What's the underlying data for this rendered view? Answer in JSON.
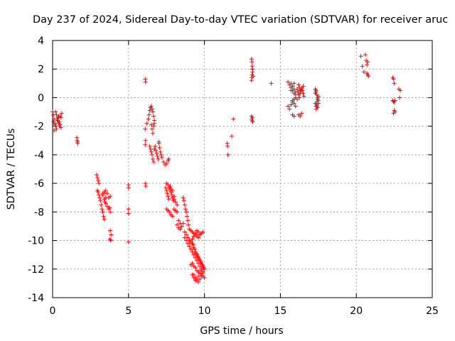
{
  "chart_data": {
    "type": "scatter",
    "title": "Day 237 of 2024, Sidereal Day-to-day VTEC variation (SDTVAR) for receiver aruc",
    "xlabel": "GPS time / hours",
    "ylabel": "SDTVAR / TECUs",
    "xlim": [
      0,
      25
    ],
    "ylim": [
      -14,
      4
    ],
    "xticks": [
      0,
      5,
      10,
      15,
      20,
      25
    ],
    "yticks": [
      -14,
      -12,
      -10,
      -8,
      -6,
      -4,
      -2,
      0,
      2,
      4
    ],
    "grid": true,
    "marker": "+",
    "color": "#ff0000",
    "series": [
      {
        "name": "SDTVAR",
        "x": [
          0.0,
          0.05,
          0.1,
          0.15,
          0.2,
          0.25,
          0.3,
          0.35,
          0.4,
          0.45,
          0.5,
          0.55,
          0.6,
          0.1,
          0.2,
          0.3,
          0.4,
          0.5,
          0.05,
          0.15,
          0.25,
          0.35,
          0.45,
          0.55,
          1.6,
          1.62,
          1.64,
          1.66,
          2.9,
          2.95,
          3.0,
          3.05,
          2.95,
          3.0,
          3.05,
          3.1,
          3.15,
          3.2,
          3.25,
          3.3,
          3.35,
          3.4,
          3.45,
          3.5,
          3.3,
          3.4,
          3.5,
          3.6,
          3.7,
          3.8,
          3.3,
          3.4,
          3.5,
          3.6,
          3.7,
          3.8,
          3.75,
          3.8,
          3.85,
          3.78,
          3.82,
          5.0,
          5.0,
          5.0,
          5.0,
          5.0,
          6.1,
          6.12,
          6.1,
          6.12,
          6.1,
          6.12,
          6.14,
          6.2,
          6.3,
          6.35,
          6.4,
          6.45,
          6.5,
          6.55,
          6.6,
          6.65,
          6.7,
          6.5,
          6.55,
          6.6,
          6.65,
          6.7,
          6.4,
          6.45,
          6.5,
          6.55,
          6.6,
          6.65,
          6.7,
          6.75,
          6.8,
          6.85,
          6.9,
          6.95,
          7.0,
          7.0,
          7.05,
          7.1,
          7.15,
          7.2,
          7.3,
          7.4,
          7.5,
          7.6,
          7.65,
          7.45,
          7.5,
          7.55,
          7.6,
          7.65,
          7.7,
          7.75,
          7.8,
          7.85,
          7.9,
          7.95,
          8.0,
          7.5,
          7.6,
          7.7,
          7.8,
          7.9,
          7.5,
          7.6,
          7.7,
          7.8,
          7.9,
          8.0,
          8.1,
          8.2,
          8.3,
          8.4,
          8.2,
          8.3,
          8.4,
          8.5,
          8.6,
          8.7,
          8.8,
          8.9,
          9.0,
          8.0,
          8.1,
          8.2,
          8.6,
          8.65,
          8.7,
          8.75,
          8.8,
          8.85,
          8.9,
          8.95,
          9.0,
          8.7,
          8.8,
          8.9,
          9.0,
          9.1,
          9.2,
          9.3,
          9.4,
          9.5,
          9.6,
          9.7,
          9.8,
          9.9,
          9.3,
          9.4,
          9.5,
          9.6,
          9.7,
          9.8,
          9.9,
          9.2,
          9.3,
          9.4,
          9.5,
          9.6,
          9.7,
          9.8,
          9.9,
          10.0,
          9.1,
          9.2,
          9.3,
          9.4,
          9.5,
          9.6,
          9.7,
          9.8,
          9.9,
          10.0,
          9.2,
          9.25,
          9.3,
          9.35,
          9.4,
          9.45,
          9.5,
          9.55,
          9.6,
          9.65,
          9.7,
          9.75,
          9.8,
          9.85,
          9.9,
          9.95,
          9.1,
          9.2,
          9.3,
          9.4,
          9.5,
          9.6,
          9.7,
          9.8,
          9.9,
          9.0,
          9.1,
          9.2,
          9.3,
          9.4,
          9.5,
          9.6,
          9.7,
          9.8,
          9.9,
          11.5,
          11.52,
          11.54,
          11.8,
          11.9,
          13.1,
          13.12,
          13.14,
          13.16,
          13.18,
          13.2,
          13.1,
          13.12,
          13.14,
          13.16,
          13.1,
          13.12,
          13.14,
          13.16,
          13.18,
          14.4,
          15.5,
          15.6,
          15.7,
          15.8,
          15.9,
          16.0,
          15.7,
          15.8,
          15.9,
          15.5,
          15.6,
          15.7,
          15.8,
          15.9,
          16.0,
          15.8,
          15.9,
          16.0,
          15.7,
          15.8,
          15.9,
          16.0,
          15.8,
          15.9,
          16.1,
          16.15,
          16.2,
          16.25,
          16.3,
          16.35,
          16.4,
          16.45,
          16.5,
          16.55,
          16.1,
          16.2,
          16.3,
          16.4,
          16.5,
          16.2,
          16.3,
          16.4,
          16.2,
          16.25,
          16.3,
          17.3,
          17.35,
          17.4,
          17.45,
          17.5,
          17.3,
          17.35,
          17.4,
          17.45,
          17.5,
          17.3,
          17.35,
          17.4,
          17.45,
          17.5,
          17.35,
          17.4,
          20.3,
          20.4,
          20.6,
          20.65,
          20.7,
          20.75,
          20.7,
          20.75,
          20.8,
          20.5,
          22.4,
          22.45,
          22.5,
          22.55,
          22.4,
          22.45,
          22.5,
          22.55,
          22.45,
          22.5,
          22.8,
          22.85,
          22.9
        ],
        "y": [
          -1.0,
          -1.2,
          -1.5,
          -1.8,
          -2.0,
          -2.2,
          -1.6,
          -1.4,
          -1.3,
          -1.7,
          -1.9,
          -2.1,
          -1.1,
          -2.3,
          -1.0,
          -1.5,
          -1.8,
          -1.3,
          -1.7,
          -1.9,
          -1.2,
          -1.6,
          -2.0,
          -1.4,
          -2.8,
          -3.0,
          -3.1,
          -3.2,
          -5.4,
          -5.6,
          -5.8,
          -6.0,
          -6.5,
          -6.6,
          -6.8,
          -7.0,
          -7.2,
          -7.5,
          -7.8,
          -8.0,
          -8.3,
          -8.5,
          -7.3,
          -7.0,
          -6.8,
          -6.6,
          -6.5,
          -6.7,
          -7.0,
          -6.9,
          -6.7,
          -7.1,
          -7.4,
          -7.6,
          -7.8,
          -8.0,
          -7.7,
          -9.3,
          -9.6,
          -9.9,
          -10.0,
          -6.1,
          -6.3,
          -7.8,
          -8.1,
          -10.1,
          1.3,
          1.1,
          -2.2,
          -3.0,
          -3.3,
          -6.0,
          -6.2,
          -1.8,
          -1.5,
          -1.2,
          -0.9,
          -0.7,
          -0.6,
          -0.8,
          -1.0,
          -1.3,
          -1.6,
          -1.9,
          -2.2,
          -2.5,
          -2.0,
          -1.8,
          -3.4,
          -3.6,
          -3.8,
          -4.0,
          -4.3,
          -4.5,
          -3.6,
          -3.4,
          -3.7,
          -3.9,
          -4.1,
          -4.3,
          -3.2,
          -3.1,
          -3.5,
          -3.8,
          -4.0,
          -4.2,
          -4.5,
          -4.7,
          -4.6,
          -4.4,
          -4.3,
          -6.3,
          -6.5,
          -6.7,
          -6.9,
          -7.1,
          -6.4,
          -6.2,
          -6.6,
          -6.8,
          -7.0,
          -7.2,
          -6.9,
          -7.8,
          -7.9,
          -8.0,
          -8.2,
          -8.3,
          -6.0,
          -6.1,
          -6.3,
          -6.4,
          -6.5,
          -7.8,
          -7.9,
          -8.0,
          -8.6,
          -8.8,
          -8.9,
          -9.1,
          -9.2,
          -9.0,
          -8.8,
          -9.4,
          -9.6,
          -9.8,
          -10.0,
          -7.1,
          -7.3,
          -7.5,
          -7.0,
          -7.2,
          -7.5,
          -7.8,
          -8.0,
          -8.3,
          -8.6,
          -8.9,
          -9.2,
          -9.8,
          -10.0,
          -10.2,
          -10.4,
          -10.6,
          -10.8,
          -11.0,
          -11.2,
          -11.4,
          -11.6,
          -11.8,
          -12.0,
          -12.2,
          -12.4,
          -12.6,
          -12.8,
          -12.9,
          -12.7,
          -12.5,
          -12.3,
          -12.4,
          -12.6,
          -12.8,
          -12.7,
          -12.5,
          -12.3,
          -12.1,
          -11.9,
          -12.0,
          -11.7,
          -11.6,
          -11.8,
          -11.9,
          -12.1,
          -12.2,
          -12.3,
          -12.4,
          -12.5,
          -12.6,
          -10.2,
          -10.3,
          -10.5,
          -10.6,
          -10.8,
          -10.9,
          -11.0,
          -11.1,
          -11.2,
          -11.3,
          -11.4,
          -11.5,
          -11.6,
          -11.7,
          -11.8,
          -11.9,
          -9.3,
          -9.4,
          -9.5,
          -9.6,
          -9.7,
          -9.8,
          -9.6,
          -9.5,
          -9.4,
          -10.0,
          -10.1,
          -9.9,
          -9.7,
          -9.5,
          -9.3,
          -9.4,
          -9.6,
          -9.5,
          -9.4,
          -3.2,
          -3.4,
          -4.0,
          -2.7,
          -1.5,
          2.7,
          2.5,
          2.2,
          2.0,
          1.8,
          1.5,
          1.2,
          1.4,
          1.6,
          2.0,
          -1.3,
          -1.5,
          -1.6,
          -1.4,
          -1.7,
          1.0,
          -0.6,
          -0.8,
          -0.5,
          -0.3,
          -0.1,
          0.2,
          0.5,
          0.8,
          1.0,
          1.1,
          0.9,
          0.7,
          0.5,
          0.3,
          0.0,
          -0.2,
          -0.4,
          -0.6,
          1.0,
          0.8,
          0.6,
          0.4,
          -1.2,
          -1.3,
          0.6,
          0.4,
          0.2,
          0.0,
          0.3,
          0.5,
          0.7,
          0.5,
          0.3,
          0.1,
          -0.1,
          0.2,
          0.4,
          0.6,
          0.8,
          -1.2,
          -1.3,
          -1.1,
          0.9,
          0.7,
          0.5,
          0.6,
          0.4,
          0.2,
          0.0,
          -0.2,
          -0.4,
          -0.6,
          -0.3,
          -0.1,
          0.1,
          0.3,
          0.5,
          -0.5,
          -0.7,
          -0.4,
          -0.8,
          -0.6,
          2.9,
          2.2,
          3.0,
          2.6,
          2.3,
          2.5,
          1.7,
          1.6,
          1.5,
          1.8,
          1.4,
          1.3,
          1.0,
          -0.2,
          -0.2,
          -0.3,
          -0.9,
          -1.0,
          -1.1,
          -0.3,
          0.6,
          0.0,
          0.5
        ]
      }
    ]
  }
}
